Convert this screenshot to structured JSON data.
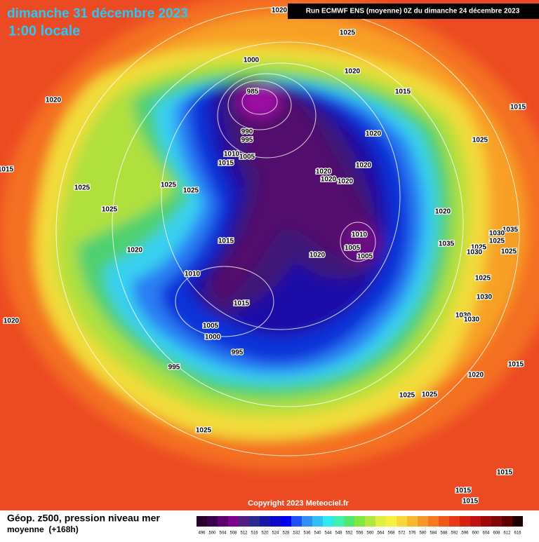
{
  "header": {
    "date": "dimanche 31 décembre 2023",
    "time": "1:00 locale",
    "run": "Run ECMWF ENS (moyenne) 0Z du dimanche 24 décembre 2023"
  },
  "map": {
    "isobar_labels": [
      1020,
      1025,
      1000,
      1020,
      985,
      1015,
      1015,
      1020,
      990,
      995,
      1020,
      1025,
      1010,
      1005,
      1015,
      1020,
      1020,
      1020,
      1020,
      1025,
      1025,
      1025,
      1025,
      1020,
      1010,
      1035,
      1030,
      1025,
      1015,
      1035,
      1005,
      1020,
      1025,
      1020,
      1005,
      1025,
      1030,
      1010,
      1025,
      1015,
      1030,
      1020,
      1030,
      1030,
      1005,
      1000,
      995,
      995,
      1015,
      1020,
      1025,
      1025,
      1025,
      1015,
      1015,
      1015,
      1015
    ]
  },
  "copyright": "Copyright 2023 Meteociel.fr",
  "footer": {
    "title": "Géop. z500, pression niveau mer",
    "subtitle": "moyenne  (+168h)",
    "scale": [
      496,
      500,
      504,
      508,
      512,
      516,
      520,
      524,
      528,
      532,
      536,
      540,
      544,
      548,
      552,
      556,
      560,
      564,
      568,
      572,
      576,
      580,
      584,
      588,
      592,
      596,
      600,
      604,
      608,
      612,
      616
    ]
  }
}
